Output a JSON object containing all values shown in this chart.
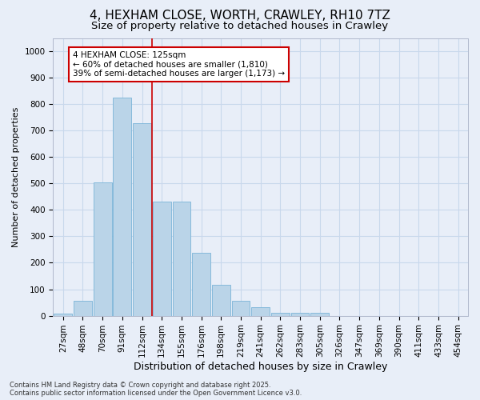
{
  "title": "4, HEXHAM CLOSE, WORTH, CRAWLEY, RH10 7TZ",
  "subtitle": "Size of property relative to detached houses in Crawley",
  "xlabel": "Distribution of detached houses by size in Crawley",
  "ylabel": "Number of detached properties",
  "categories": [
    "27sqm",
    "48sqm",
    "70sqm",
    "91sqm",
    "112sqm",
    "134sqm",
    "155sqm",
    "176sqm",
    "198sqm",
    "219sqm",
    "241sqm",
    "262sqm",
    "283sqm",
    "305sqm",
    "326sqm",
    "347sqm",
    "369sqm",
    "390sqm",
    "411sqm",
    "433sqm",
    "454sqm"
  ],
  "values": [
    8,
    57,
    505,
    825,
    728,
    430,
    430,
    238,
    118,
    57,
    33,
    12,
    12,
    10,
    0,
    0,
    0,
    0,
    0,
    0,
    0
  ],
  "bar_color": "#bad4e8",
  "bar_edgecolor": "#7ab4d8",
  "grid_color": "#c8d8ec",
  "background_color": "#e8eef8",
  "vline_x_index": 4,
  "vline_color": "#cc0000",
  "annotation_text": "4 HEXHAM CLOSE: 125sqm\n← 60% of detached houses are smaller (1,810)\n39% of semi-detached houses are larger (1,173) →",
  "annotation_box_color": "white",
  "annotation_box_edgecolor": "#cc0000",
  "ylim": [
    0,
    1050
  ],
  "yticks": [
    0,
    100,
    200,
    300,
    400,
    500,
    600,
    700,
    800,
    900,
    1000
  ],
  "footer": "Contains HM Land Registry data © Crown copyright and database right 2025.\nContains public sector information licensed under the Open Government Licence v3.0.",
  "title_fontsize": 11,
  "subtitle_fontsize": 9.5,
  "xlabel_fontsize": 9,
  "ylabel_fontsize": 8,
  "tick_fontsize": 7.5,
  "footer_fontsize": 6,
  "annotation_fontsize": 7.5
}
